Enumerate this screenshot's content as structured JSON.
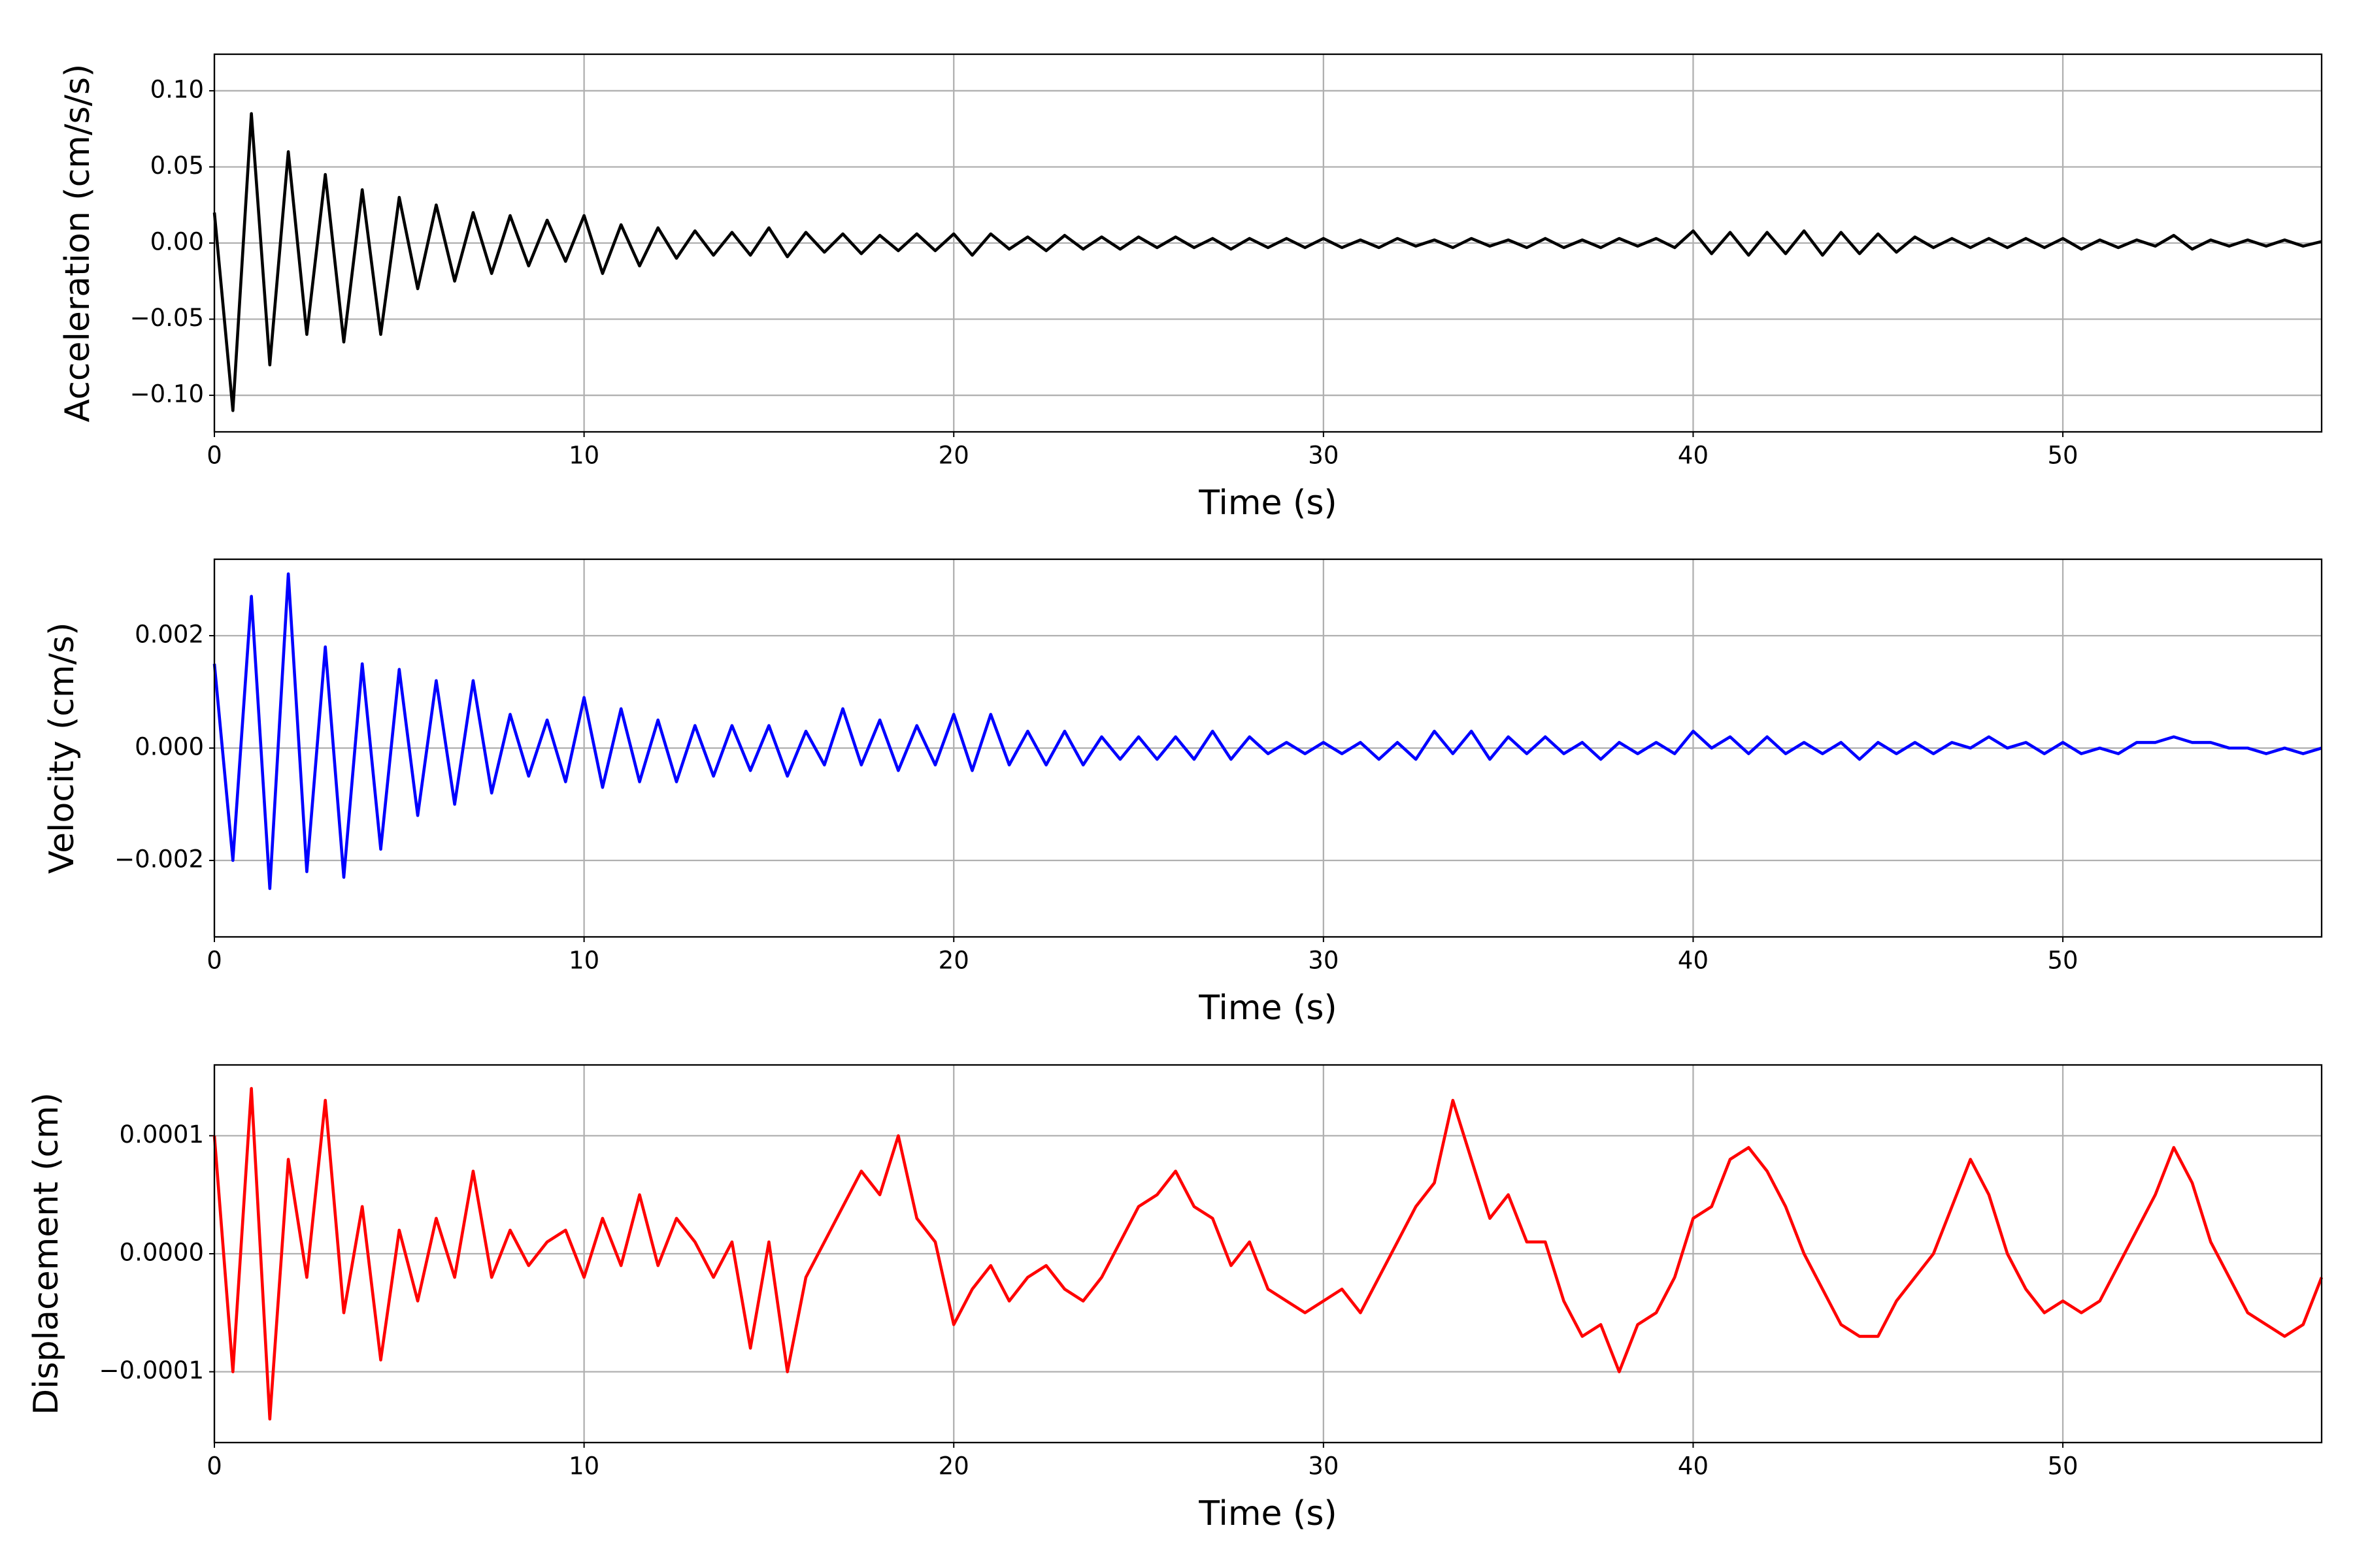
{
  "chart_data": [
    {
      "type": "line",
      "ylabel": "Acceleration (cm/s/s)",
      "xlabel": "Time (s)",
      "color": "#000000",
      "grid": true,
      "xlim": [
        0,
        57
      ],
      "xticks": [
        0,
        10,
        20,
        30,
        40,
        50
      ],
      "ylim": [
        -0.124,
        0.124
      ],
      "yticks": [
        {
          "value": -0.1,
          "label": "−0.10"
        },
        {
          "value": -0.05,
          "label": "−0.05"
        },
        {
          "value": 0,
          "label": "0.00"
        },
        0.05,
        {
          "value": 0.1,
          "label": "0.10"
        }
      ],
      "x": [
        0,
        0.5,
        1,
        1.5,
        2,
        2.5,
        3,
        3.5,
        4,
        4.5,
        5,
        5.5,
        6,
        6.5,
        7,
        7.5,
        8,
        8.5,
        9,
        9.5,
        10,
        10.5,
        11,
        11.5,
        12,
        12.5,
        13,
        13.5,
        14,
        14.5,
        15,
        15.5,
        16,
        16.5,
        17,
        17.5,
        18,
        18.5,
        19,
        19.5,
        20,
        20.5,
        21,
        21.5,
        22,
        22.5,
        23,
        23.5,
        24,
        24.5,
        25,
        25.5,
        26,
        26.5,
        27,
        27.5,
        28,
        28.5,
        29,
        29.5,
        30,
        30.5,
        31,
        31.5,
        32,
        32.5,
        33,
        33.5,
        34,
        34.5,
        35,
        35.5,
        36,
        36.5,
        37,
        37.5,
        38,
        38.5,
        39,
        39.5,
        40,
        40.5,
        41,
        41.5,
        42,
        42.5,
        43,
        43.5,
        44,
        44.5,
        45,
        45.5,
        46,
        46.5,
        47,
        47.5,
        48,
        48.5,
        49,
        49.5,
        50,
        50.5,
        51,
        51.5,
        52,
        52.5,
        53,
        53.5,
        54,
        54.5,
        55,
        55.5,
        56,
        56.5,
        57
      ],
      "values": [
        0.02,
        -0.11,
        0.085,
        -0.08,
        0.06,
        -0.06,
        0.045,
        -0.065,
        0.035,
        -0.06,
        0.03,
        -0.03,
        0.025,
        -0.025,
        0.02,
        -0.02,
        0.018,
        -0.015,
        0.015,
        -0.012,
        0.018,
        -0.02,
        0.012,
        -0.015,
        0.01,
        -0.01,
        0.008,
        -0.008,
        0.007,
        -0.008,
        0.01,
        -0.009,
        0.007,
        -0.006,
        0.006,
        -0.007,
        0.005,
        -0.005,
        0.006,
        -0.005,
        0.006,
        -0.008,
        0.006,
        -0.004,
        0.004,
        -0.005,
        0.005,
        -0.004,
        0.004,
        -0.004,
        0.004,
        -0.003,
        0.004,
        -0.003,
        0.003,
        -0.004,
        0.003,
        -0.003,
        0.003,
        -0.003,
        0.003,
        -0.003,
        0.002,
        -0.003,
        0.003,
        -0.002,
        0.002,
        -0.003,
        0.003,
        -0.002,
        0.002,
        -0.003,
        0.003,
        -0.003,
        0.002,
        -0.003,
        0.003,
        -0.002,
        0.003,
        -0.003,
        0.008,
        -0.007,
        0.007,
        -0.008,
        0.007,
        -0.007,
        0.008,
        -0.008,
        0.007,
        -0.007,
        0.006,
        -0.006,
        0.004,
        -0.003,
        0.003,
        -0.003,
        0.003,
        -0.003,
        0.003,
        -0.003,
        0.003,
        -0.004,
        0.002,
        -0.003,
        0.002,
        -0.002,
        0.005,
        -0.004,
        0.002,
        -0.002,
        0.002,
        -0.002,
        0.002,
        -0.002,
        0.001
      ]
    },
    {
      "type": "line",
      "ylabel": "Velocity (cm/s)",
      "xlabel": "Time (s)",
      "color": "#0000ff",
      "grid": true,
      "xlim": [
        0,
        57
      ],
      "xticks": [
        0,
        10,
        20,
        30,
        40,
        50
      ],
      "ylim": [
        -0.00336,
        0.00336
      ],
      "yticks": [
        {
          "value": -0.002,
          "label": "−0.002"
        },
        {
          "value": 0,
          "label": "0.000"
        },
        0.002
      ],
      "x": [
        0,
        0.5,
        1,
        1.5,
        2,
        2.5,
        3,
        3.5,
        4,
        4.5,
        5,
        5.5,
        6,
        6.5,
        7,
        7.5,
        8,
        8.5,
        9,
        9.5,
        10,
        10.5,
        11,
        11.5,
        12,
        12.5,
        13,
        13.5,
        14,
        14.5,
        15,
        15.5,
        16,
        16.5,
        17,
        17.5,
        18,
        18.5,
        19,
        19.5,
        20,
        20.5,
        21,
        21.5,
        22,
        22.5,
        23,
        23.5,
        24,
        24.5,
        25,
        25.5,
        26,
        26.5,
        27,
        27.5,
        28,
        28.5,
        29,
        29.5,
        30,
        30.5,
        31,
        31.5,
        32,
        32.5,
        33,
        33.5,
        34,
        34.5,
        35,
        35.5,
        36,
        36.5,
        37,
        37.5,
        38,
        38.5,
        39,
        39.5,
        40,
        40.5,
        41,
        41.5,
        42,
        42.5,
        43,
        43.5,
        44,
        44.5,
        45,
        45.5,
        46,
        46.5,
        47,
        47.5,
        48,
        48.5,
        49,
        49.5,
        50,
        50.5,
        51,
        51.5,
        52,
        52.5,
        53,
        53.5,
        54,
        54.5,
        55,
        55.5,
        56,
        56.5,
        57
      ],
      "values": [
        0.0015,
        -0.002,
        0.0027,
        -0.0025,
        0.0031,
        -0.0022,
        0.0018,
        -0.0023,
        0.0015,
        -0.0018,
        0.0014,
        -0.0012,
        0.0012,
        -0.001,
        0.0012,
        -0.0008,
        0.0006,
        -0.0005,
        0.0005,
        -0.0006,
        0.0009,
        -0.0007,
        0.0007,
        -0.0006,
        0.0005,
        -0.0006,
        0.0004,
        -0.0005,
        0.0004,
        -0.0004,
        0.0004,
        -0.0005,
        0.0003,
        -0.0003,
        0.0007,
        -0.0003,
        0.0005,
        -0.0004,
        0.0004,
        -0.0003,
        0.0006,
        -0.0004,
        0.0006,
        -0.0003,
        0.0003,
        -0.0003,
        0.0003,
        -0.0003,
        0.0002,
        -0.0002,
        0.0002,
        -0.0002,
        0.0002,
        -0.0002,
        0.0003,
        -0.0002,
        0.0002,
        -0.0001,
        0.0001,
        -0.0001,
        0.0001,
        -0.0001,
        0.0001,
        -0.0002,
        0.0001,
        -0.0002,
        0.0003,
        -0.0001,
        0.0003,
        -0.0002,
        0.0002,
        -0.0001,
        0.0002,
        -0.0001,
        0.0001,
        -0.0002,
        0.0001,
        -0.0001,
        0.0001,
        -0.0001,
        0.0003,
        0,
        0.0002,
        -0.0001,
        0.0002,
        -0.0001,
        0.0001,
        -0.0001,
        0.0001,
        -0.0002,
        0.0001,
        -0.0001,
        0.0001,
        -0.0001,
        0.0001,
        0,
        0.0002,
        0,
        0.0001,
        -0.0001,
        0.0001,
        -0.0001,
        0,
        -0.0001,
        0.0001,
        0.0001,
        0.0002,
        0.0001,
        0.0001,
        0,
        0,
        -0.0001,
        0,
        -0.0001,
        0
      ]
    },
    {
      "type": "line",
      "ylabel": "Displacement (cm)",
      "xlabel": "Time (s)",
      "color": "#ff0000",
      "grid": true,
      "xlim": [
        0,
        57
      ],
      "xticks": [
        0,
        10,
        20,
        30,
        40,
        50
      ],
      "ylim": [
        -0.00016,
        0.00016
      ],
      "yticks": [
        {
          "value": -0.0001,
          "label": "−0.0001"
        },
        {
          "value": 0,
          "label": "0.0000"
        },
        0.0001
      ],
      "x": [
        0,
        0.5,
        1,
        1.5,
        2,
        2.5,
        3,
        3.5,
        4,
        4.5,
        5,
        5.5,
        6,
        6.5,
        7,
        7.5,
        8,
        8.5,
        9,
        9.5,
        10,
        10.5,
        11,
        11.5,
        12,
        12.5,
        13,
        13.5,
        14,
        14.5,
        15,
        15.5,
        16,
        16.5,
        17,
        17.5,
        18,
        18.5,
        19,
        19.5,
        20,
        20.5,
        21,
        21.5,
        22,
        22.5,
        23,
        23.5,
        24,
        24.5,
        25,
        25.5,
        26,
        26.5,
        27,
        27.5,
        28,
        28.5,
        29,
        29.5,
        30,
        30.5,
        31,
        31.5,
        32,
        32.5,
        33,
        33.5,
        34,
        34.5,
        35,
        35.5,
        36,
        36.5,
        37,
        37.5,
        38,
        38.5,
        39,
        39.5,
        40,
        40.5,
        41,
        41.5,
        42,
        42.5,
        43,
        43.5,
        44,
        44.5,
        45,
        45.5,
        46,
        46.5,
        47,
        47.5,
        48,
        48.5,
        49,
        49.5,
        50,
        50.5,
        51,
        51.5,
        52,
        52.5,
        53,
        53.5,
        54,
        54.5,
        55,
        55.5,
        56,
        56.5,
        57
      ],
      "values": [
        0.0001,
        -0.0001,
        0.00014,
        -0.00014,
        8e-05,
        -2e-05,
        0.00013,
        -5e-05,
        4e-05,
        -9e-05,
        2e-05,
        -4e-05,
        3e-05,
        -2e-05,
        7e-05,
        -2e-05,
        2e-05,
        -1e-05,
        1e-05,
        2e-05,
        -2e-05,
        3e-05,
        -1e-05,
        5e-05,
        -1e-05,
        3e-05,
        1e-05,
        -2e-05,
        1e-05,
        -8e-05,
        1e-05,
        -0.0001,
        -2e-05,
        1e-05,
        4e-05,
        7e-05,
        5e-05,
        0.0001,
        3e-05,
        1e-05,
        -6e-05,
        -3e-05,
        -1e-05,
        -4e-05,
        -2e-05,
        -1e-05,
        -3e-05,
        -4e-05,
        -2e-05,
        1e-05,
        4e-05,
        5e-05,
        7e-05,
        4e-05,
        3e-05,
        -1e-05,
        1e-05,
        -3e-05,
        -4e-05,
        -5e-05,
        -4e-05,
        -3e-05,
        -5e-05,
        -2e-05,
        1e-05,
        4e-05,
        6e-05,
        0.00013,
        8e-05,
        3e-05,
        5e-05,
        1e-05,
        1e-05,
        -4e-05,
        -7e-05,
        -6e-05,
        -0.0001,
        -6e-05,
        -5e-05,
        -2e-05,
        3e-05,
        4e-05,
        8e-05,
        9e-05,
        7e-05,
        4e-05,
        0,
        -3e-05,
        -6e-05,
        -7e-05,
        -7e-05,
        -4e-05,
        -2e-05,
        0,
        4e-05,
        8e-05,
        5e-05,
        0,
        -3e-05,
        -5e-05,
        -4e-05,
        -5e-05,
        -4e-05,
        -1e-05,
        2e-05,
        5e-05,
        9e-05,
        6e-05,
        1e-05,
        -2e-05,
        -5e-05,
        -6e-05,
        -7e-05,
        -6e-05,
        -2e-05
      ]
    }
  ]
}
